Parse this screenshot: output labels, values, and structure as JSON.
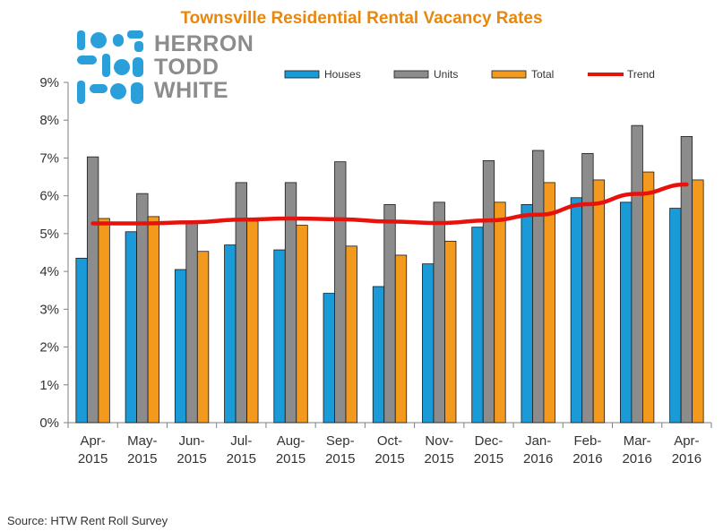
{
  "logo": {
    "lines": [
      "HERRON",
      "TODD",
      "WHITE"
    ],
    "color": "#8C8C8C",
    "dot_color": "#2B9FD9"
  },
  "source": "Source: HTW Rent Roll Survey",
  "colors": {
    "houses": "#1A9BD7",
    "units": "#8C8C8C",
    "total": "#F39A1E",
    "trend": "#E8120C",
    "title": "#E8870E"
  },
  "chart_data": {
    "type": "bar",
    "title": "Townsville Residential Rental Vacancy Rates",
    "xlabel": "",
    "ylabel": "",
    "ylim": [
      0,
      9
    ],
    "y_ticks": [
      "0%",
      "1%",
      "2%",
      "3%",
      "4%",
      "5%",
      "6%",
      "7%",
      "8%",
      "9%"
    ],
    "categories": [
      [
        "Apr-",
        "2015"
      ],
      [
        "May-",
        "2015"
      ],
      [
        "Jun-",
        "2015"
      ],
      [
        "Jul-",
        "2015"
      ],
      [
        "Aug-",
        "2015"
      ],
      [
        "Sep-",
        "2015"
      ],
      [
        "Oct-",
        "2015"
      ],
      [
        "Nov-",
        "2015"
      ],
      [
        "Dec-",
        "2015"
      ],
      [
        "Jan-",
        "2016"
      ],
      [
        "Feb-",
        "2016"
      ],
      [
        "Mar-",
        "2016"
      ],
      [
        "Apr-",
        "2016"
      ]
    ],
    "series": [
      {
        "name": "Houses",
        "values": [
          4.35,
          5.05,
          4.05,
          4.7,
          4.57,
          3.42,
          3.6,
          4.2,
          5.17,
          5.77,
          5.95,
          5.83,
          5.67
        ]
      },
      {
        "name": "Units",
        "values": [
          7.03,
          6.06,
          5.3,
          6.35,
          6.35,
          6.9,
          5.77,
          5.83,
          6.93,
          7.2,
          7.12,
          7.86,
          7.57
        ]
      },
      {
        "name": "Total",
        "values": [
          5.4,
          5.45,
          4.53,
          5.33,
          5.22,
          4.67,
          4.43,
          4.8,
          5.83,
          6.35,
          6.42,
          6.63,
          6.42
        ]
      }
    ],
    "trend": {
      "name": "Trend",
      "values": [
        5.27,
        5.27,
        5.3,
        5.37,
        5.4,
        5.38,
        5.32,
        5.28,
        5.35,
        5.5,
        5.78,
        6.05,
        6.3
      ]
    },
    "legend": [
      "Houses",
      "Units",
      "Total",
      "Trend"
    ],
    "legend_position": "top-right",
    "grid": false
  }
}
